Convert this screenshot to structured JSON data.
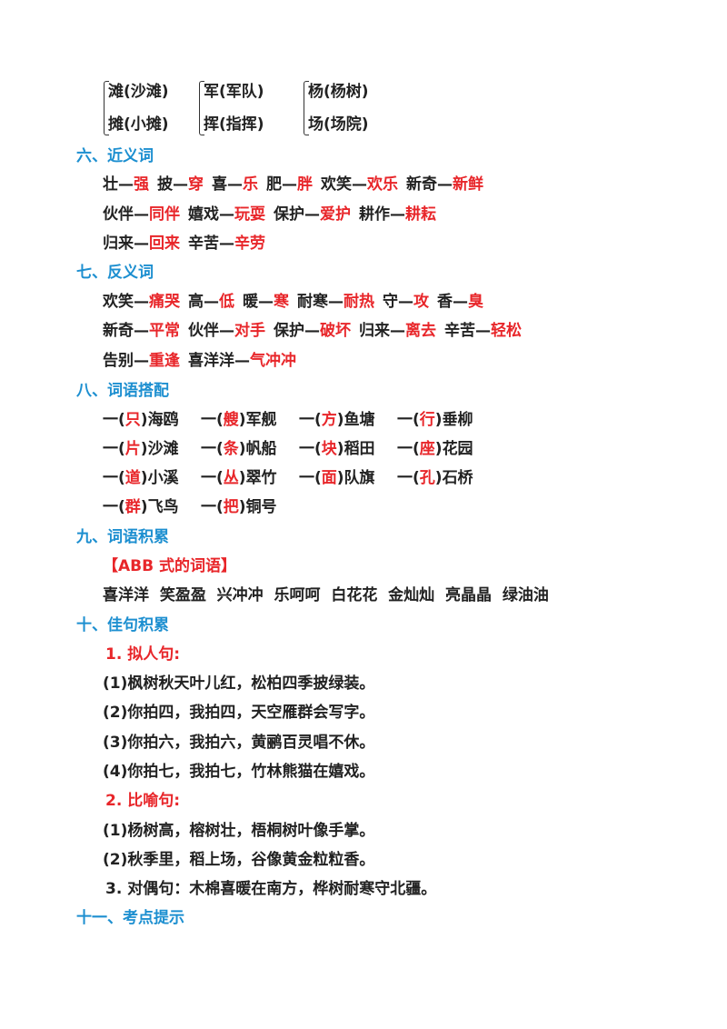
{
  "pairs": [
    {
      "top": "滩(沙滩)",
      "bottom": "摊(小摊)"
    },
    {
      "top": "军(军队)",
      "bottom": "挥(指挥)"
    },
    {
      "top": "杨(杨树)",
      "bottom": "场(场院)"
    }
  ],
  "s6": {
    "title": "六、近义词",
    "rows": [
      [
        [
          "壮—",
          "强"
        ],
        [
          "披—",
          "穿"
        ],
        [
          "喜—",
          "乐"
        ],
        [
          "肥—",
          "胖"
        ],
        [
          "欢笑—",
          "欢乐"
        ],
        [
          "新奇—",
          "新鲜"
        ]
      ],
      [
        [
          "伙伴—",
          "同伴"
        ],
        [
          "嬉戏—",
          "玩耍"
        ],
        [
          "保护—",
          "爱护"
        ],
        [
          "耕作—",
          "耕耘"
        ]
      ],
      [
        [
          "归来—",
          "回来"
        ],
        [
          "辛苦—",
          "辛劳"
        ]
      ]
    ]
  },
  "s7": {
    "title": "七、反义词",
    "rows": [
      [
        [
          "欢笑—",
          "痛哭"
        ],
        [
          "高—",
          "低"
        ],
        [
          "暖—",
          "寒"
        ],
        [
          "耐寒—",
          "耐热"
        ],
        [
          "守—",
          "攻"
        ],
        [
          "香—",
          "臭"
        ]
      ],
      [
        [
          "新奇—",
          "平常"
        ],
        [
          "伙伴—",
          "对手"
        ],
        [
          "保护—",
          "破坏"
        ],
        [
          "归来—",
          "离去"
        ],
        [
          "辛苦—",
          "轻松"
        ]
      ],
      [
        [
          "告别—",
          "重逢"
        ],
        [
          "喜洋洋—",
          "气冲冲"
        ]
      ]
    ]
  },
  "s8": {
    "title": "八、词语搭配",
    "rows": [
      [
        [
          "只",
          "海鸥"
        ],
        [
          "艘",
          "军舰"
        ],
        [
          "方",
          "鱼塘"
        ],
        [
          "行",
          "垂柳"
        ]
      ],
      [
        [
          "片",
          "沙滩"
        ],
        [
          "条",
          "帆船"
        ],
        [
          "块",
          "稻田"
        ],
        [
          "座",
          "花园"
        ]
      ],
      [
        [
          "道",
          "小溪"
        ],
        [
          "丛",
          "翠竹"
        ],
        [
          "面",
          "队旗"
        ],
        [
          "孔",
          "石桥"
        ]
      ],
      [
        [
          "群",
          "飞鸟"
        ],
        [
          "把",
          "铜号"
        ]
      ]
    ]
  },
  "s9": {
    "title": "九、词语积累",
    "subtitle": "【ABB 式的词语】",
    "words": "喜洋洋  笑盈盈  兴冲冲  乐呵呵  白花花  金灿灿  亮晶晶  绿油油"
  },
  "s10": {
    "title": "十、佳句积累",
    "sub1": "1. 拟人句:",
    "lines1": [
      "(1)枫树秋天叶儿红，松柏四季披绿装。",
      "(2)你拍四，我拍四，天空雁群会写字。",
      "(3)你拍六，我拍六，黄鹂百灵唱不休。",
      "(4)你拍七，我拍七，竹林熊猫在嬉戏。"
    ],
    "sub2": "2. 比喻句:",
    "lines2": [
      "(1)杨树高，榕树壮，梧桐树叶像手掌。",
      "(2)秋季里，稻上场，谷像黄金粒粒香。"
    ],
    "line3": "3. 对偶句：木棉喜暖在南方，桦树耐寒守北疆。"
  },
  "s11": {
    "title": "十一、考点提示"
  },
  "colors": {
    "heading": "#1d8fd0",
    "answer": "#e8262a",
    "text": "#222222"
  }
}
